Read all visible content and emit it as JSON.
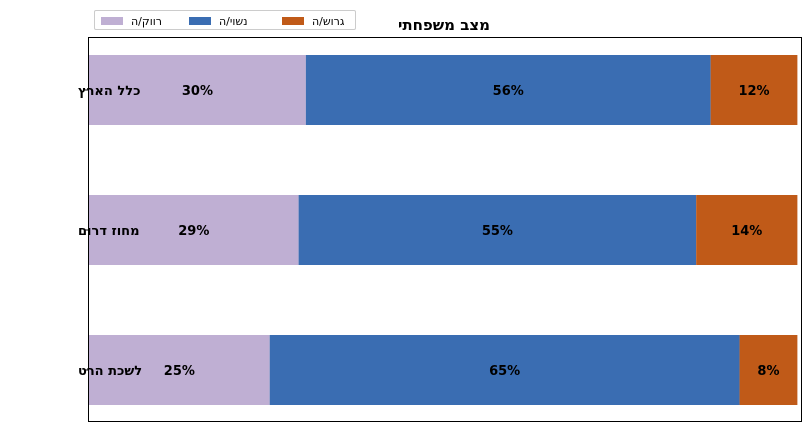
{
  "chart_data": {
    "type": "bar",
    "orientation": "horizontal",
    "stacked": true,
    "title": "מצב משפחתי",
    "categories": [
      "כלל הארץ",
      "מחוז דרום",
      "לשכת הרט"
    ],
    "series": [
      {
        "name": "רווק/ה",
        "color": "#bfafd3",
        "values": [
          30,
          29,
          25
        ],
        "labels": [
          "30%",
          "29%",
          "25%"
        ]
      },
      {
        "name": "נשוי/ה",
        "color": "#3a6db2",
        "values": [
          56,
          55,
          65
        ],
        "labels": [
          "56%",
          "55%",
          "65%"
        ]
      },
      {
        "name": "גרוש/ה",
        "color": "#c05a18",
        "values": [
          12,
          14,
          8
        ],
        "labels": [
          "12%",
          "14%",
          "8%"
        ]
      }
    ],
    "xlim": [
      0,
      98.5
    ],
    "grid": false,
    "legend": "top-left",
    "xticks_visible": false
  }
}
